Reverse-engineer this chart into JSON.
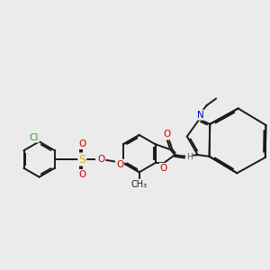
{
  "background_color": "#ebebeb",
  "bond_color": "#1a1a1a",
  "bond_width": 1.4,
  "dbo": 0.055,
  "atom_colors": {
    "O": "#cc0000",
    "N": "#0000cc",
    "S": "#bbbb00",
    "Cl": "#22aa22",
    "H": "#555555",
    "C": "#1a1a1a"
  },
  "font_size": 7.5
}
